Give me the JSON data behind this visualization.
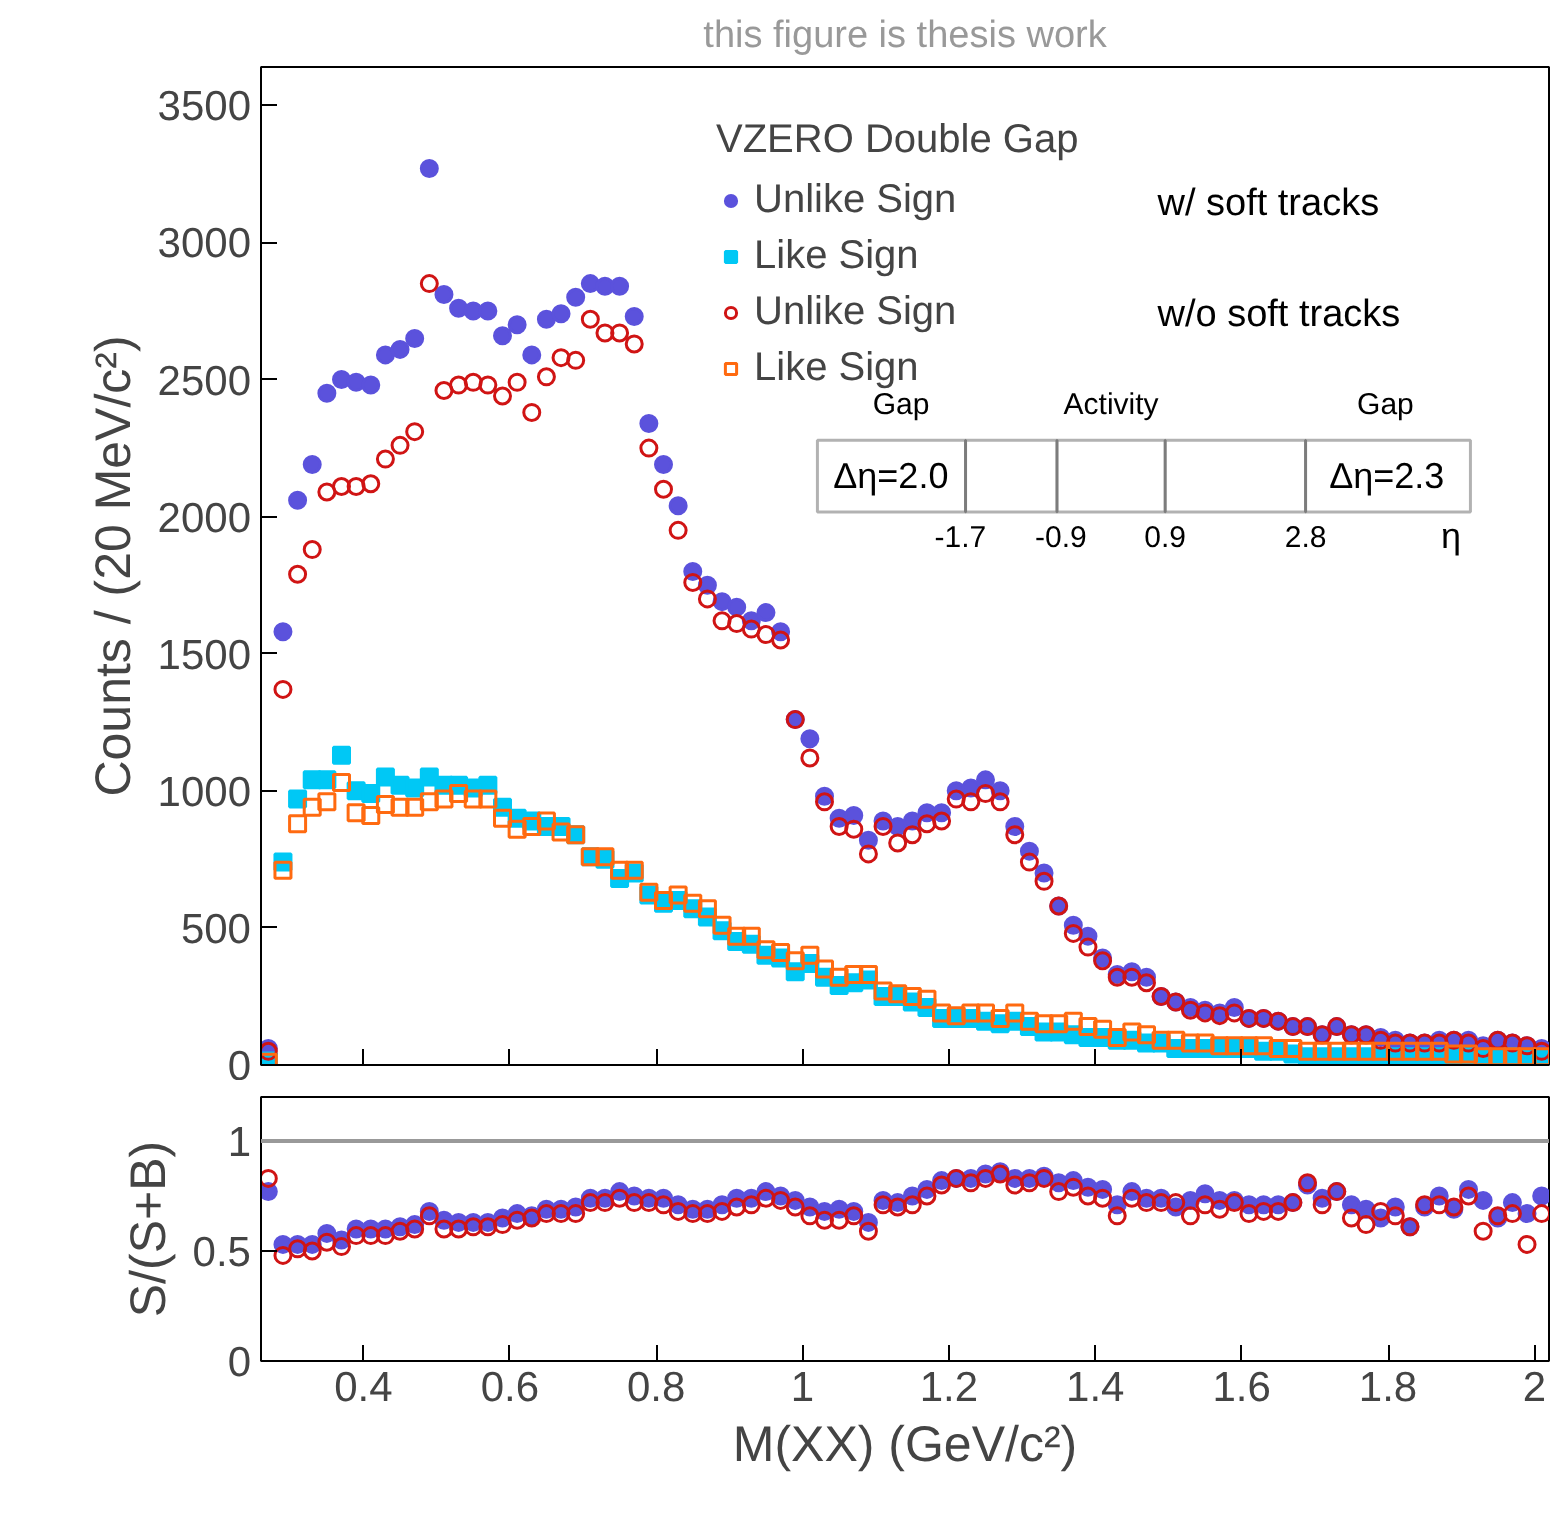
{
  "chart_data": [
    {
      "type": "scatter",
      "ylabel": "Counts / (20 MeV/c²)",
      "legend_title": "VZERO Double Gap",
      "legend": "top",
      "grid": false,
      "tick_labels": "y",
      "annotations": [
        "this figure is thesis work",
        "w/ soft tracks",
        "w/o soft tracks",
        "Gap",
        "Activity",
        "Gap",
        "Δη=2.0",
        "Δη=2.3",
        "-1.7",
        "-0.9",
        "0.9",
        "2.8",
        "η"
      ],
      "xlim": [
        0.26,
        2.02
      ],
      "xticks": [
        0.4,
        0.6,
        0.8,
        1,
        1.2,
        1.4,
        1.6,
        1.8,
        2
      ],
      "ylim": [
        0,
        3640
      ],
      "yticks": [
        0,
        500,
        1000,
        1500,
        2000,
        2500,
        3000,
        3500
      ],
      "x": [
        0.27,
        0.29,
        0.31,
        0.33,
        0.35,
        0.37,
        0.39,
        0.41,
        0.43,
        0.45,
        0.47,
        0.49,
        0.51,
        0.53,
        0.55,
        0.57,
        0.59,
        0.61,
        0.63,
        0.65,
        0.67,
        0.69,
        0.71,
        0.73,
        0.75,
        0.77,
        0.79,
        0.81,
        0.83,
        0.85,
        0.87,
        0.89,
        0.91,
        0.93,
        0.95,
        0.97,
        0.99,
        1.01,
        1.03,
        1.05,
        1.07,
        1.09,
        1.11,
        1.13,
        1.15,
        1.17,
        1.19,
        1.21,
        1.23,
        1.25,
        1.27,
        1.29,
        1.31,
        1.33,
        1.35,
        1.37,
        1.39,
        1.41,
        1.43,
        1.45,
        1.47,
        1.49,
        1.51,
        1.53,
        1.55,
        1.57,
        1.59,
        1.61,
        1.63,
        1.65,
        1.67,
        1.69,
        1.71,
        1.73,
        1.75,
        1.77,
        1.79,
        1.81,
        1.83,
        1.85,
        1.87,
        1.89,
        1.91,
        1.93,
        1.95,
        1.97,
        1.99,
        2.01
      ],
      "series": [
        {
          "name": "Unlike Sign",
          "color": "#5b52dc",
          "marker": "circle",
          "values": [
            60,
            1580,
            2060,
            2190,
            2450,
            2500,
            2490,
            2480,
            2590,
            2610,
            2650,
            3270,
            2810,
            2760,
            2750,
            2750,
            2660,
            2700,
            2590,
            2720,
            2740,
            2800,
            2850,
            2840,
            2840,
            2730,
            2340,
            2190,
            2040,
            1800,
            1750,
            1690,
            1670,
            1620,
            1650,
            1580,
            1260,
            1190,
            980,
            900,
            910,
            820,
            890,
            870,
            890,
            920,
            920,
            1000,
            1010,
            1040,
            1000,
            870,
            780,
            700,
            580,
            510,
            470,
            390,
            330,
            340,
            320,
            250,
            230,
            210,
            200,
            190,
            210,
            170,
            170,
            160,
            140,
            140,
            110,
            140,
            110,
            110,
            100,
            90,
            80,
            80,
            90,
            90,
            90,
            70,
            90,
            80,
            70,
            60
          ]
        },
        {
          "name": "Like Sign",
          "color": "#00c8f5",
          "marker": "square",
          "values": [
            15,
            740,
            970,
            1040,
            1040,
            1130,
            1000,
            990,
            1050,
            1020,
            1010,
            1050,
            1020,
            1020,
            1010,
            1020,
            940,
            900,
            890,
            870,
            870,
            840,
            760,
            750,
            680,
            700,
            620,
            590,
            600,
            570,
            540,
            490,
            450,
            440,
            400,
            390,
            340,
            370,
            320,
            290,
            300,
            310,
            250,
            250,
            230,
            210,
            170,
            170,
            170,
            160,
            150,
            160,
            140,
            120,
            120,
            110,
            100,
            100,
            90,
            90,
            80,
            80,
            60,
            60,
            60,
            60,
            60,
            60,
            50,
            50,
            40,
            30,
            30,
            30,
            30,
            30,
            30,
            30,
            30,
            30,
            30,
            30,
            30,
            20,
            30,
            30,
            20,
            20
          ]
        },
        {
          "name": "Unlike Sign",
          "color": "#d01414",
          "marker": "circle",
          "values": [
            50,
            1370,
            1790,
            1880,
            2090,
            2110,
            2110,
            2120,
            2210,
            2260,
            2310,
            2850,
            2460,
            2480,
            2490,
            2480,
            2440,
            2490,
            2380,
            2510,
            2580,
            2570,
            2720,
            2670,
            2670,
            2630,
            2250,
            2100,
            1950,
            1760,
            1700,
            1620,
            1610,
            1590,
            1570,
            1550,
            1260,
            1120,
            960,
            870,
            860,
            770,
            870,
            810,
            840,
            880,
            890,
            970,
            960,
            990,
            960,
            840,
            740,
            670,
            580,
            480,
            430,
            380,
            320,
            320,
            300,
            250,
            230,
            200,
            190,
            180,
            190,
            170,
            170,
            160,
            140,
            140,
            110,
            140,
            110,
            110,
            90,
            80,
            80,
            80,
            80,
            90,
            80,
            60,
            90,
            80,
            70,
            50
          ]
        },
        {
          "name": "Like Sign",
          "color": "#ff6a10",
          "marker": "square",
          "values": [
            10,
            710,
            880,
            940,
            960,
            1030,
            920,
            910,
            950,
            940,
            940,
            960,
            970,
            990,
            970,
            970,
            900,
            860,
            870,
            890,
            850,
            840,
            760,
            760,
            710,
            710,
            630,
            600,
            620,
            590,
            570,
            510,
            470,
            470,
            420,
            410,
            380,
            400,
            350,
            320,
            330,
            330,
            270,
            260,
            250,
            240,
            190,
            180,
            190,
            190,
            170,
            190,
            160,
            150,
            150,
            160,
            140,
            130,
            100,
            120,
            110,
            90,
            90,
            80,
            80,
            70,
            70,
            70,
            70,
            60,
            60,
            50,
            50,
            50,
            50,
            50,
            50,
            50,
            50,
            50,
            50,
            40,
            40,
            30,
            30,
            30,
            30,
            30
          ]
        }
      ]
    },
    {
      "type": "scatter",
      "xlabel": "M(XX) (GeV/c²)",
      "ylabel": "S/(S+B)",
      "grid": false,
      "xlim": [
        0.26,
        2.02
      ],
      "xticks": [
        0.4,
        0.6,
        0.8,
        1,
        1.2,
        1.4,
        1.6,
        1.8,
        2
      ],
      "ylim": [
        0,
        1.2
      ],
      "yticks": [
        0,
        0.5,
        1
      ],
      "ref_lines": [
        {
          "axis": "y",
          "value": 1,
          "color": "#999999"
        }
      ],
      "x": [
        0.27,
        0.29,
        0.31,
        0.33,
        0.35,
        0.37,
        0.39,
        0.41,
        0.43,
        0.45,
        0.47,
        0.49,
        0.51,
        0.53,
        0.55,
        0.57,
        0.59,
        0.61,
        0.63,
        0.65,
        0.67,
        0.69,
        0.71,
        0.73,
        0.75,
        0.77,
        0.79,
        0.81,
        0.83,
        0.85,
        0.87,
        0.89,
        0.91,
        0.93,
        0.95,
        0.97,
        0.99,
        1.01,
        1.03,
        1.05,
        1.07,
        1.09,
        1.11,
        1.13,
        1.15,
        1.17,
        1.19,
        1.21,
        1.23,
        1.25,
        1.27,
        1.29,
        1.31,
        1.33,
        1.35,
        1.37,
        1.39,
        1.41,
        1.43,
        1.45,
        1.47,
        1.49,
        1.51,
        1.53,
        1.55,
        1.57,
        1.59,
        1.61,
        1.63,
        1.65,
        1.67,
        1.69,
        1.71,
        1.73,
        1.75,
        1.77,
        1.79,
        1.81,
        1.83,
        1.85,
        1.87,
        1.89,
        1.91,
        1.93,
        1.95,
        1.97,
        1.99,
        2.01
      ],
      "series": [
        {
          "color": "#5b52dc",
          "marker": "circle",
          "values": [
            0.77,
            0.53,
            0.53,
            0.53,
            0.58,
            0.55,
            0.6,
            0.6,
            0.6,
            0.61,
            0.62,
            0.68,
            0.64,
            0.63,
            0.63,
            0.63,
            0.65,
            0.67,
            0.66,
            0.69,
            0.69,
            0.7,
            0.74,
            0.74,
            0.77,
            0.75,
            0.74,
            0.74,
            0.71,
            0.69,
            0.69,
            0.71,
            0.74,
            0.74,
            0.77,
            0.75,
            0.73,
            0.7,
            0.68,
            0.69,
            0.68,
            0.63,
            0.73,
            0.72,
            0.75,
            0.78,
            0.82,
            0.83,
            0.83,
            0.85,
            0.86,
            0.83,
            0.83,
            0.84,
            0.81,
            0.82,
            0.79,
            0.78,
            0.71,
            0.77,
            0.74,
            0.74,
            0.7,
            0.73,
            0.76,
            0.73,
            0.73,
            0.71,
            0.71,
            0.71,
            0.72,
            0.8,
            0.74,
            0.77,
            0.71,
            0.69,
            0.65,
            0.7,
            0.61,
            0.7,
            0.75,
            0.69,
            0.78,
            0.73,
            0.65,
            0.72,
            0.67,
            0.75
          ]
        },
        {
          "color": "#d01414",
          "marker": "circle",
          "values": [
            0.83,
            0.48,
            0.51,
            0.5,
            0.54,
            0.52,
            0.57,
            0.57,
            0.57,
            0.59,
            0.6,
            0.66,
            0.6,
            0.6,
            0.61,
            0.61,
            0.62,
            0.64,
            0.65,
            0.67,
            0.67,
            0.67,
            0.72,
            0.72,
            0.74,
            0.72,
            0.72,
            0.71,
            0.68,
            0.67,
            0.67,
            0.68,
            0.7,
            0.71,
            0.74,
            0.73,
            0.7,
            0.66,
            0.64,
            0.64,
            0.66,
            0.59,
            0.71,
            0.7,
            0.71,
            0.75,
            0.8,
            0.83,
            0.81,
            0.83,
            0.85,
            0.8,
            0.81,
            0.83,
            0.77,
            0.79,
            0.75,
            0.74,
            0.66,
            0.74,
            0.72,
            0.72,
            0.72,
            0.66,
            0.71,
            0.69,
            0.72,
            0.67,
            0.68,
            0.68,
            0.72,
            0.81,
            0.71,
            0.77,
            0.65,
            0.62,
            0.68,
            0.66,
            0.61,
            0.71,
            0.71,
            0.7,
            0.75,
            0.59,
            0.66,
            0.67,
            0.53,
            0.67
          ]
        }
      ]
    }
  ]
}
